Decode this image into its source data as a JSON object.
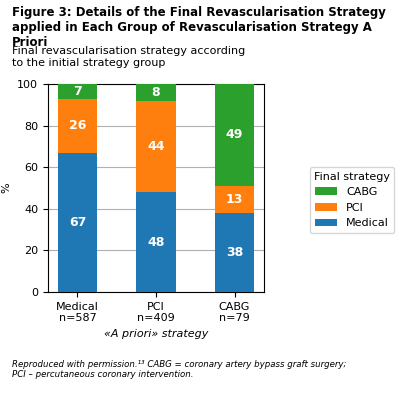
{
  "chart_data": {
    "type": "bar",
    "stacked": true,
    "title": "Figure 3: Details of the Final Revascularisation Strategy\napplied in Each Group of Revascularisation Strategy A Priori",
    "subtitle": "Final revascularisation strategy according\nto the initial strategy group",
    "xlabel": "«A priori» strategy",
    "ylabel": "%",
    "categories": [
      "Medical\nn=587",
      "PCI\nn=409",
      "CABG\nn=79"
    ],
    "series": [
      {
        "name": "Medical",
        "values": [
          67,
          48,
          38
        ]
      },
      {
        "name": "PCI",
        "values": [
          26,
          44,
          13
        ]
      },
      {
        "name": "CABG",
        "values": [
          7,
          8,
          49
        ]
      }
    ],
    "ylim": [
      0,
      100
    ],
    "yticks": [
      0,
      20,
      40,
      60,
      80,
      100
    ],
    "grid": true,
    "legend": "right",
    "legend_title": "Final strategy",
    "data_labels": true,
    "footnote": "Reproduced with permission.¹³ CABG = coronary artery bypass graft surgery;\nPCI – percutaneous coronary intervention."
  }
}
